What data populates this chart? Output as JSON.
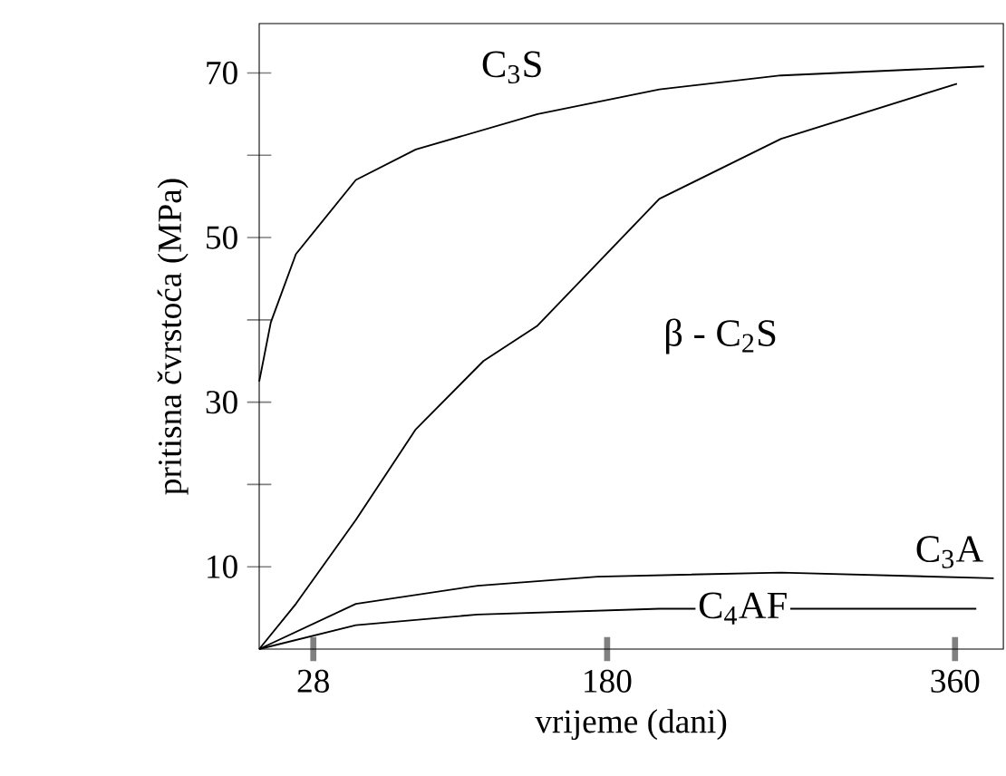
{
  "chart_data": {
    "type": "line",
    "xlabel": "vrijeme (dani)",
    "ylabel": "pritisna čvrstoća (MPa)",
    "xlim": [
      0,
      385
    ],
    "ylim": [
      0,
      76
    ],
    "xticks": [
      28,
      180,
      360
    ],
    "yticks": [
      10,
      {
        "value": 20,
        "label": null
      },
      30,
      {
        "value": 40,
        "label": null
      },
      50,
      {
        "value": 60,
        "label": null
      },
      70
    ],
    "series": [
      {
        "name": "C$_{3}$S",
        "color": "#000000",
        "x": [
          0,
          6,
          19,
          50,
          81,
          144,
          207,
          270,
          375
        ],
        "values": [
          32.5,
          39.7,
          48,
          57,
          60.7,
          65,
          68,
          69.7,
          70.8
        ]
      },
      {
        "name": "β - C$_{2}$S",
        "color": "#000000",
        "x": [
          0,
          19,
          50,
          81,
          116,
          144,
          207,
          270,
          361
        ],
        "values": [
          0,
          5.5,
          15.7,
          26.7,
          35,
          39.3,
          54.7,
          62,
          68.7
        ]
      },
      {
        "name": "C$_{3}$A",
        "color": "#000000",
        "x": [
          0,
          50,
          113,
          175,
          270,
          380
        ],
        "values": [
          0,
          5.5,
          7.7,
          8.8,
          9.3,
          8.6
        ]
      },
      {
        "name": "C$_{4}$AF",
        "color": "#000000",
        "x": [
          0,
          50,
          113,
          207,
          371
        ],
        "values": [
          0,
          2.9,
          4.2,
          4.9,
          4.9
        ]
      }
    ]
  }
}
